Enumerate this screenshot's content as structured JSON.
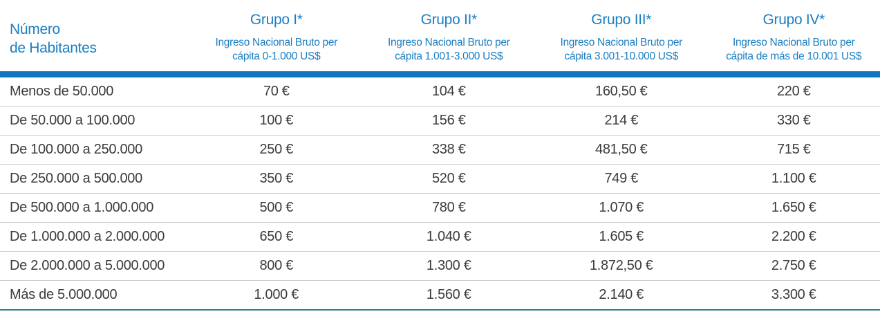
{
  "table": {
    "row_header": {
      "line1": "Número",
      "line2": "de Habitantes"
    },
    "columns": [
      {
        "title": "Grupo I*",
        "subtitle": "Ingreso Nacional Bruto per cápita 0-1.000 US$"
      },
      {
        "title": "Grupo II*",
        "subtitle": "Ingreso Nacional Bruto per cápita 1.001-3.000 US$"
      },
      {
        "title": "Grupo III*",
        "subtitle": "Ingreso Nacional Bruto per cápita 3.001-10.000 US$"
      },
      {
        "title": "Grupo IV*",
        "subtitle": "Ingreso Nacional Bruto per cápita de más de 10.001 US$"
      }
    ],
    "rows": [
      {
        "label": "Menos de 50.000",
        "values": [
          "70 €",
          "104 €",
          "160,50 €",
          "220 €"
        ]
      },
      {
        "label": "De 50.000 a 100.000",
        "values": [
          "100 €",
          "156 €",
          "214 €",
          "330 €"
        ]
      },
      {
        "label": "De 100.000 a 250.000",
        "values": [
          "250 €",
          "338 €",
          "481,50 €",
          "715 €"
        ]
      },
      {
        "label": "De 250.000 a 500.000",
        "values": [
          "350 €",
          "520 €",
          "749 €",
          "1.100 €"
        ]
      },
      {
        "label": "De 500.000 a 1.000.000",
        "values": [
          "500 €",
          "780 €",
          "1.070 €",
          "1.650 €"
        ]
      },
      {
        "label": "De 1.000.000 a 2.000.000",
        "values": [
          "650 €",
          "1.040 €",
          "1.605 €",
          "2.200 €"
        ]
      },
      {
        "label": "De 2.000.000 a 5.000.000",
        "values": [
          "800 €",
          "1.300 €",
          "1.872,50 €",
          "2.750 €"
        ]
      },
      {
        "label": "Más de 5.000.000",
        "values": [
          "1.000 €",
          "1.560 €",
          "2.140 €",
          "3.300 €"
        ]
      }
    ]
  },
  "colors": {
    "header_text_blue": "#1b7ec2",
    "header_bar_blue": "#1377bd",
    "body_text": "#3b3b3a",
    "row_divider": "#cccccc",
    "bottom_line_teal": "#2f7f91"
  }
}
